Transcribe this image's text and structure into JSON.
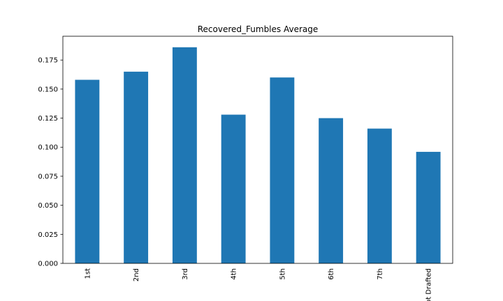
{
  "chart_data": {
    "type": "bar",
    "title": "Recovered_Fumbles Average",
    "xlabel": "",
    "ylabel": "",
    "categories": [
      "1st",
      "2nd",
      "3rd",
      "4th",
      "5th",
      "6th",
      "7th",
      "Not Drafted"
    ],
    "values": [
      0.158,
      0.165,
      0.186,
      0.128,
      0.16,
      0.125,
      0.116,
      0.096
    ],
    "ylim": [
      0,
      0.1955
    ],
    "yticks": [
      "0.000",
      "0.025",
      "0.050",
      "0.075",
      "0.100",
      "0.125",
      "0.150",
      "0.175"
    ],
    "bar_color": "#1f77b4",
    "grid": false,
    "legend": "none"
  }
}
